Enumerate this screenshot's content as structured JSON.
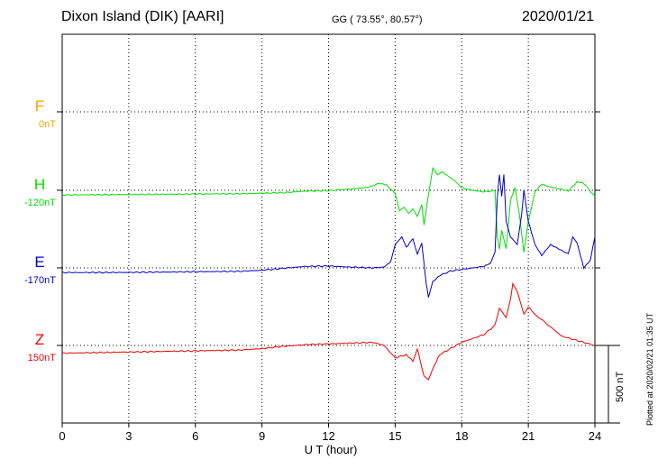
{
  "header": {
    "station": "Dixon Island (DIK)  [AARI]",
    "coords": "GG ( 73.55°,  80.57°)",
    "date": "2020/01/21"
  },
  "plotted_note": "Plotted at 2020/02/21 01:35 UT",
  "scale_label": "500 nT",
  "chart_data": {
    "type": "line",
    "title": "Dixon Island (DIK)  [AARI]",
    "xlabel": "U T (hour)",
    "xlim": [
      0,
      24
    ],
    "xticks": [
      "0",
      "3",
      "6",
      "9",
      "12",
      "15",
      "18",
      "21",
      "24"
    ],
    "scale_nT": 500,
    "grid": true,
    "series": [
      {
        "name": "F",
        "baseline_label": "0nT",
        "color": "#f5a300",
        "values": []
      },
      {
        "name": "H",
        "baseline_label": "-120nT",
        "color": "#00dd00",
        "values": [
          [
            0,
            -30
          ],
          [
            2,
            -28
          ],
          [
            4,
            -26
          ],
          [
            6,
            -24
          ],
          [
            8,
            -22
          ],
          [
            10,
            -15
          ],
          [
            11,
            -5
          ],
          [
            12,
            -2
          ],
          [
            13,
            8
          ],
          [
            13.8,
            20
          ],
          [
            14.3,
            45
          ],
          [
            14.6,
            35
          ],
          [
            15,
            -20
          ],
          [
            15.2,
            -130
          ],
          [
            15.4,
            -110
          ],
          [
            15.6,
            -150
          ],
          [
            15.8,
            -120
          ],
          [
            16,
            -170
          ],
          [
            16.2,
            -90
          ],
          [
            16.3,
            -220
          ],
          [
            16.5,
            -30
          ],
          [
            16.7,
            140
          ],
          [
            16.9,
            100
          ],
          [
            17.1,
            120
          ],
          [
            17.4,
            90
          ],
          [
            17.7,
            60
          ],
          [
            18,
            15
          ],
          [
            18.5,
            0
          ],
          [
            19,
            -10
          ],
          [
            19.5,
            -2
          ],
          [
            19.6,
            -300
          ],
          [
            19.7,
            -380
          ],
          [
            19.8,
            -260
          ],
          [
            20,
            -380
          ],
          [
            20.2,
            -60
          ],
          [
            20.4,
            20
          ],
          [
            20.6,
            -160
          ],
          [
            20.8,
            -400
          ],
          [
            21,
            -200
          ],
          [
            21.3,
            -10
          ],
          [
            21.6,
            40
          ],
          [
            22,
            20
          ],
          [
            22.4,
            10
          ],
          [
            22.8,
            -5
          ],
          [
            23.2,
            55
          ],
          [
            23.5,
            45
          ],
          [
            24,
            -40
          ]
        ]
      },
      {
        "name": "E",
        "baseline_label": "-170nT",
        "color": "#0000cc",
        "values": [
          [
            0,
            -30
          ],
          [
            2,
            -30
          ],
          [
            4,
            -28
          ],
          [
            6,
            -25
          ],
          [
            8,
            -22
          ],
          [
            9,
            -15
          ],
          [
            10,
            -2
          ],
          [
            11,
            10
          ],
          [
            12,
            12
          ],
          [
            13,
            5
          ],
          [
            14,
            0
          ],
          [
            14.5,
            5
          ],
          [
            14.8,
            40
          ],
          [
            15,
            150
          ],
          [
            15.3,
            200
          ],
          [
            15.5,
            130
          ],
          [
            15.8,
            190
          ],
          [
            16,
            90
          ],
          [
            16.2,
            160
          ],
          [
            16.4,
            -100
          ],
          [
            16.5,
            -190
          ],
          [
            16.7,
            -90
          ],
          [
            17,
            -50
          ],
          [
            17.5,
            -20
          ],
          [
            18,
            -10
          ],
          [
            18.5,
            0
          ],
          [
            19,
            10
          ],
          [
            19.3,
            30
          ],
          [
            19.5,
            100
          ],
          [
            19.6,
            450
          ],
          [
            19.7,
            600
          ],
          [
            19.8,
            460
          ],
          [
            19.9,
            600
          ],
          [
            20,
            300
          ],
          [
            20.2,
            200
          ],
          [
            20.5,
            150
          ],
          [
            20.7,
            340
          ],
          [
            20.8,
            500
          ],
          [
            21,
            300
          ],
          [
            21.3,
            150
          ],
          [
            21.6,
            80
          ],
          [
            22,
            150
          ],
          [
            22.4,
            120
          ],
          [
            22.8,
            90
          ],
          [
            23,
            200
          ],
          [
            23.2,
            160
          ],
          [
            23.5,
            0
          ],
          [
            23.8,
            50
          ],
          [
            24,
            200
          ]
        ]
      },
      {
        "name": "Z",
        "baseline_label": "150nT",
        "color": "#ee0000",
        "values": [
          [
            0,
            -50
          ],
          [
            2,
            -45
          ],
          [
            4,
            -40
          ],
          [
            6,
            -35
          ],
          [
            8,
            -30
          ],
          [
            9,
            -20
          ],
          [
            10,
            -5
          ],
          [
            11,
            5
          ],
          [
            12,
            10
          ],
          [
            13,
            15
          ],
          [
            14,
            20
          ],
          [
            14.5,
            0
          ],
          [
            15,
            -80
          ],
          [
            15.5,
            -60
          ],
          [
            15.8,
            -100
          ],
          [
            16,
            -20
          ],
          [
            16.3,
            -200
          ],
          [
            16.5,
            -220
          ],
          [
            16.7,
            -150
          ],
          [
            17,
            -60
          ],
          [
            17.5,
            -20
          ],
          [
            18,
            20
          ],
          [
            18.5,
            45
          ],
          [
            19,
            70
          ],
          [
            19.5,
            130
          ],
          [
            19.7,
            240
          ],
          [
            20,
            180
          ],
          [
            20.2,
            300
          ],
          [
            20.3,
            400
          ],
          [
            20.5,
            350
          ],
          [
            20.8,
            200
          ],
          [
            21,
            250
          ],
          [
            21.3,
            200
          ],
          [
            22,
            120
          ],
          [
            22.5,
            60
          ],
          [
            23,
            40
          ],
          [
            23.5,
            20
          ],
          [
            24,
            0
          ]
        ]
      }
    ]
  }
}
